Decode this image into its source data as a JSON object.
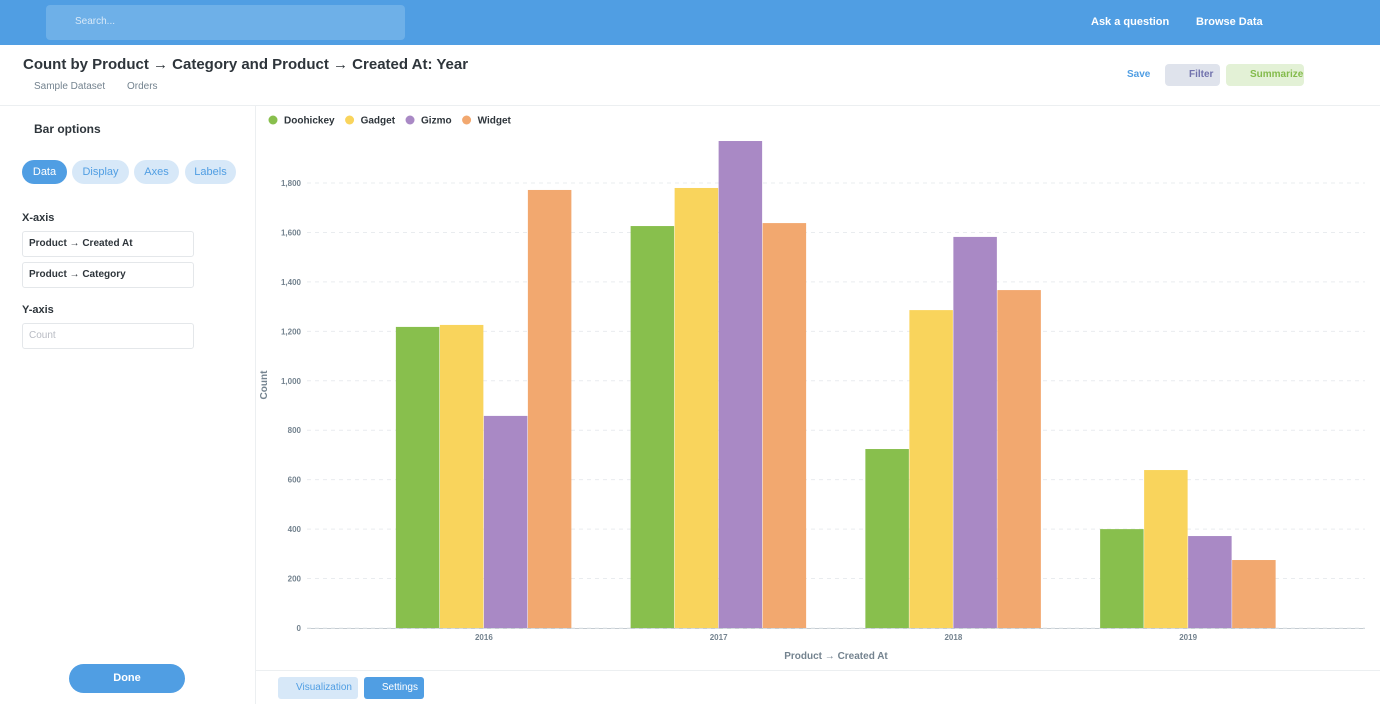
{
  "header": {
    "search": "Search...",
    "ask": "Ask a question",
    "browse": "Browse Data"
  },
  "question": {
    "title": "Count by Product → Category and Product → Created At: Year",
    "database": "Sample Dataset",
    "table": "Orders",
    "save": "Save",
    "filter": "Filter",
    "summarize": "Summarize"
  },
  "sidebar": {
    "title": "Bar options",
    "tabs": [
      "Data",
      "Display",
      "Axes",
      "Labels"
    ],
    "x_axis_label": "X-axis",
    "x_fields": [
      "Product → Created At",
      "Product → Category"
    ],
    "y_axis_label": "Y-axis",
    "y_field": "Count",
    "done": "Done"
  },
  "footer": {
    "visualization": "Visualization",
    "settings": "Settings"
  },
  "chart_data": {
    "type": "bar",
    "x_label": "Product → Created At",
    "y_label": "Count",
    "categories": [
      "2016",
      "2017",
      "2018",
      "2019"
    ],
    "series": [
      {
        "name": "Doohickey",
        "color": "#88bf4d",
        "values": [
          1218,
          1626,
          724,
          400
        ]
      },
      {
        "name": "Gadget",
        "color": "#f9d45c",
        "values": [
          1226,
          1780,
          1286,
          639
        ]
      },
      {
        "name": "Gizmo",
        "color": "#a989c5",
        "values": [
          858,
          1970,
          1582,
          372
        ]
      },
      {
        "name": "Widget",
        "color": "#f2a86f",
        "values": [
          1772,
          1638,
          1367,
          275
        ]
      }
    ],
    "ylim": [
      0,
      2000
    ],
    "yticks": [
      0,
      200,
      400,
      600,
      800,
      {
        "value": 1000,
        "label": "1,000"
      },
      {
        "value": 1200,
        "label": "1,200"
      },
      {
        "value": 1400,
        "label": "1,400"
      },
      {
        "value": 1600,
        "label": "1,600"
      },
      {
        "value": 1800,
        "label": "1,800"
      }
    ],
    "grid": true,
    "legend": "top-left"
  }
}
